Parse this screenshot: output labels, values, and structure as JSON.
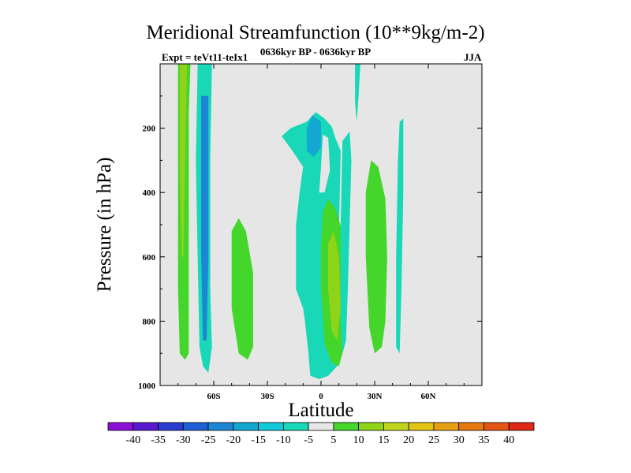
{
  "chart_data": {
    "type": "heatmap",
    "title": "Meridional Streamfunction (10**9kg/m-2)",
    "subtitle_left": "Expt = teVt11-teIx1",
    "subtitle_center": "0636kyr BP - 0636kyr BP",
    "subtitle_right": "JJA",
    "xlabel": "Latitude",
    "ylabel": "Pressure (in hPa)",
    "xlim": [
      -90,
      90
    ],
    "ylim": [
      1000,
      0
    ],
    "x_ticks": [
      -60,
      -30,
      0,
      30,
      60
    ],
    "x_tick_labels": [
      "60S",
      "30S",
      "0",
      "30N",
      "60N"
    ],
    "y_ticks": [
      200,
      400,
      600,
      800,
      1000
    ],
    "y_tick_labels": [
      "200",
      "400",
      "600",
      "800",
      "1000"
    ],
    "background_color": "#e6e6e6",
    "colorbar": {
      "labels": [
        "-40",
        "-35",
        "-30",
        "-25",
        "-20",
        "-15",
        "-10",
        "-5",
        "5",
        "10",
        "15",
        "20",
        "25",
        "30",
        "35",
        "40"
      ],
      "colors": [
        "#8a10d8",
        "#5a18d0",
        "#2a3ad0",
        "#1f5fd6",
        "#1a86d4",
        "#12a8d2",
        "#0fcad8",
        "#18d8b8",
        "#e6e6e6",
        "#44d62a",
        "#8fd418",
        "#c0d41a",
        "#e2c414",
        "#e8a012",
        "#e67812",
        "#e65414",
        "#e02814"
      ]
    },
    "regions": [
      {
        "name": "green-band-60s-left",
        "color": "#44d62a",
        "points": [
          [
            -80,
            0
          ],
          [
            -73,
            0
          ],
          [
            -74,
            150
          ],
          [
            -74,
            400
          ],
          [
            -74,
            700
          ],
          [
            -74,
            900
          ],
          [
            -76,
            920
          ],
          [
            -79,
            900
          ],
          [
            -80,
            700
          ],
          [
            -80,
            400
          ]
        ]
      },
      {
        "name": "yellow-core-70s",
        "color": "#8fd418",
        "points": [
          [
            -79,
            0
          ],
          [
            -75,
            0
          ],
          [
            -76,
            300
          ],
          [
            -77,
            600
          ],
          [
            -78,
            600
          ],
          [
            -79,
            300
          ]
        ]
      },
      {
        "name": "cyan-band-60s",
        "color": "#18d8b8",
        "points": [
          [
            -69,
            0
          ],
          [
            -61,
            0
          ],
          [
            -62,
            300
          ],
          [
            -62,
            700
          ],
          [
            -61,
            880
          ],
          [
            -63,
            960
          ],
          [
            -66,
            940
          ],
          [
            -68,
            880
          ],
          [
            -69,
            600
          ],
          [
            -70,
            300
          ]
        ]
      },
      {
        "name": "blue-core-60s",
        "color": "#1a86d4",
        "points": [
          [
            -67,
            100
          ],
          [
            -63,
            100
          ],
          [
            -63,
            600
          ],
          [
            -64,
            860
          ],
          [
            -66,
            860
          ],
          [
            -67,
            600
          ]
        ]
      },
      {
        "name": "green-blob-45s",
        "color": "#44d62a",
        "points": [
          [
            -50,
            520
          ],
          [
            -46,
            480
          ],
          [
            -42,
            520
          ],
          [
            -38,
            650
          ],
          [
            -38,
            880
          ],
          [
            -41,
            920
          ],
          [
            -46,
            900
          ],
          [
            -50,
            760
          ]
        ]
      },
      {
        "name": "cyan-region-equator",
        "color": "#18d8b8",
        "points": [
          [
            -22,
            225
          ],
          [
            -17,
            200
          ],
          [
            -8,
            180
          ],
          [
            -3,
            150
          ],
          [
            2,
            170
          ],
          [
            6,
            195
          ],
          [
            8,
            230
          ],
          [
            11,
            270
          ],
          [
            10,
            520
          ],
          [
            9,
            600
          ],
          [
            11,
            700
          ],
          [
            12,
            850
          ],
          [
            9,
            940
          ],
          [
            4,
            970
          ],
          [
            -1,
            980
          ],
          [
            -6,
            970
          ],
          [
            -7,
            900
          ],
          [
            -9,
            800
          ],
          [
            -10,
            760
          ],
          [
            -14,
            700
          ],
          [
            -14,
            500
          ],
          [
            -12,
            400
          ],
          [
            -10,
            320
          ],
          [
            -16,
            270
          ]
        ]
      },
      {
        "name": "blue-core-equator",
        "color": "#12a8d2",
        "points": [
          [
            -8,
            200
          ],
          [
            -5,
            160
          ],
          [
            0,
            180
          ],
          [
            0,
            260
          ],
          [
            -4,
            290
          ],
          [
            -8,
            270
          ]
        ]
      },
      {
        "name": "gray-gap-equator",
        "color": "#e6e6e6",
        "points": [
          [
            1,
            220
          ],
          [
            4,
            230
          ],
          [
            5,
            330
          ],
          [
            2,
            400
          ],
          [
            -1,
            400
          ],
          [
            0,
            320
          ]
        ]
      },
      {
        "name": "green-band-equator",
        "color": "#44d62a",
        "points": [
          [
            1,
            460
          ],
          [
            4,
            420
          ],
          [
            8,
            450
          ],
          [
            13,
            540
          ],
          [
            14,
            700
          ],
          [
            13,
            880
          ],
          [
            10,
            940
          ],
          [
            6,
            930
          ],
          [
            2,
            870
          ],
          [
            0,
            700
          ],
          [
            0,
            560
          ]
        ]
      },
      {
        "name": "yellow-core-equator",
        "color": "#8fd418",
        "points": [
          [
            4,
            560
          ],
          [
            7,
            520
          ],
          [
            10,
            600
          ],
          [
            11,
            760
          ],
          [
            9,
            860
          ],
          [
            6,
            830
          ],
          [
            4,
            700
          ]
        ]
      },
      {
        "name": "cyan-band-15n",
        "color": "#18d8b8",
        "points": [
          [
            12,
            240
          ],
          [
            16,
            210
          ],
          [
            17,
            300
          ],
          [
            16,
            500
          ],
          [
            15,
            700
          ],
          [
            14,
            860
          ],
          [
            12,
            900
          ],
          [
            11,
            800
          ],
          [
            11,
            500
          ]
        ]
      },
      {
        "name": "cyan-top-20n",
        "color": "#18d8b8",
        "points": [
          [
            19,
            0
          ],
          [
            22,
            0
          ],
          [
            21,
            100
          ],
          [
            20,
            180
          ],
          [
            19,
            120
          ]
        ]
      },
      {
        "name": "green-blob-30n",
        "color": "#44d62a",
        "points": [
          [
            25,
            400
          ],
          [
            28,
            300
          ],
          [
            32,
            320
          ],
          [
            36,
            420
          ],
          [
            37,
            600
          ],
          [
            36,
            800
          ],
          [
            34,
            880
          ],
          [
            30,
            900
          ],
          [
            27,
            820
          ],
          [
            25,
            600
          ]
        ]
      },
      {
        "name": "cyan-thin-45n",
        "color": "#18d8b8",
        "points": [
          [
            44,
            180
          ],
          [
            46,
            170
          ],
          [
            46,
            400
          ],
          [
            45,
            700
          ],
          [
            44,
            900
          ],
          [
            42,
            880
          ],
          [
            42,
            600
          ],
          [
            43,
            300
          ]
        ]
      }
    ]
  }
}
